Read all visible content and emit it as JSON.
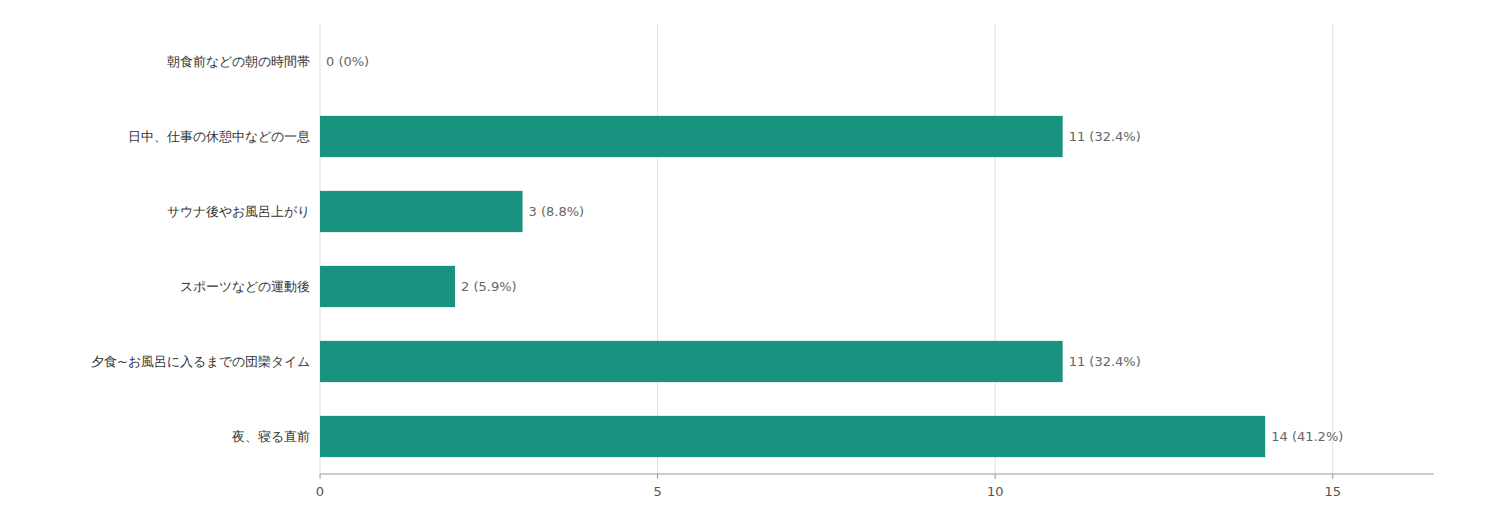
{
  "chart_data": {
    "type": "bar",
    "orientation": "horizontal",
    "categories": [
      "朝食前などの朝の時間帯",
      "日中、仕事の休憩中などの一息",
      "サウナ後やお風呂上がり",
      "スポーツなどの運動後",
      "夕食~お風呂に入るまでの団欒タイム",
      "夜、寝る直前"
    ],
    "values": [
      0,
      11,
      3,
      2,
      11,
      14
    ],
    "value_labels": [
      "0 (0%)",
      "11 (32.4%)",
      "3 (8.8%)",
      "2 (5.9%)",
      "11 (32.4%)",
      "14 (41.2%)"
    ],
    "data_labels": true,
    "color": "#1a9280",
    "xlim": [
      0,
      16.5
    ],
    "xticks": [
      0,
      5,
      10,
      15
    ],
    "grid": true
  }
}
